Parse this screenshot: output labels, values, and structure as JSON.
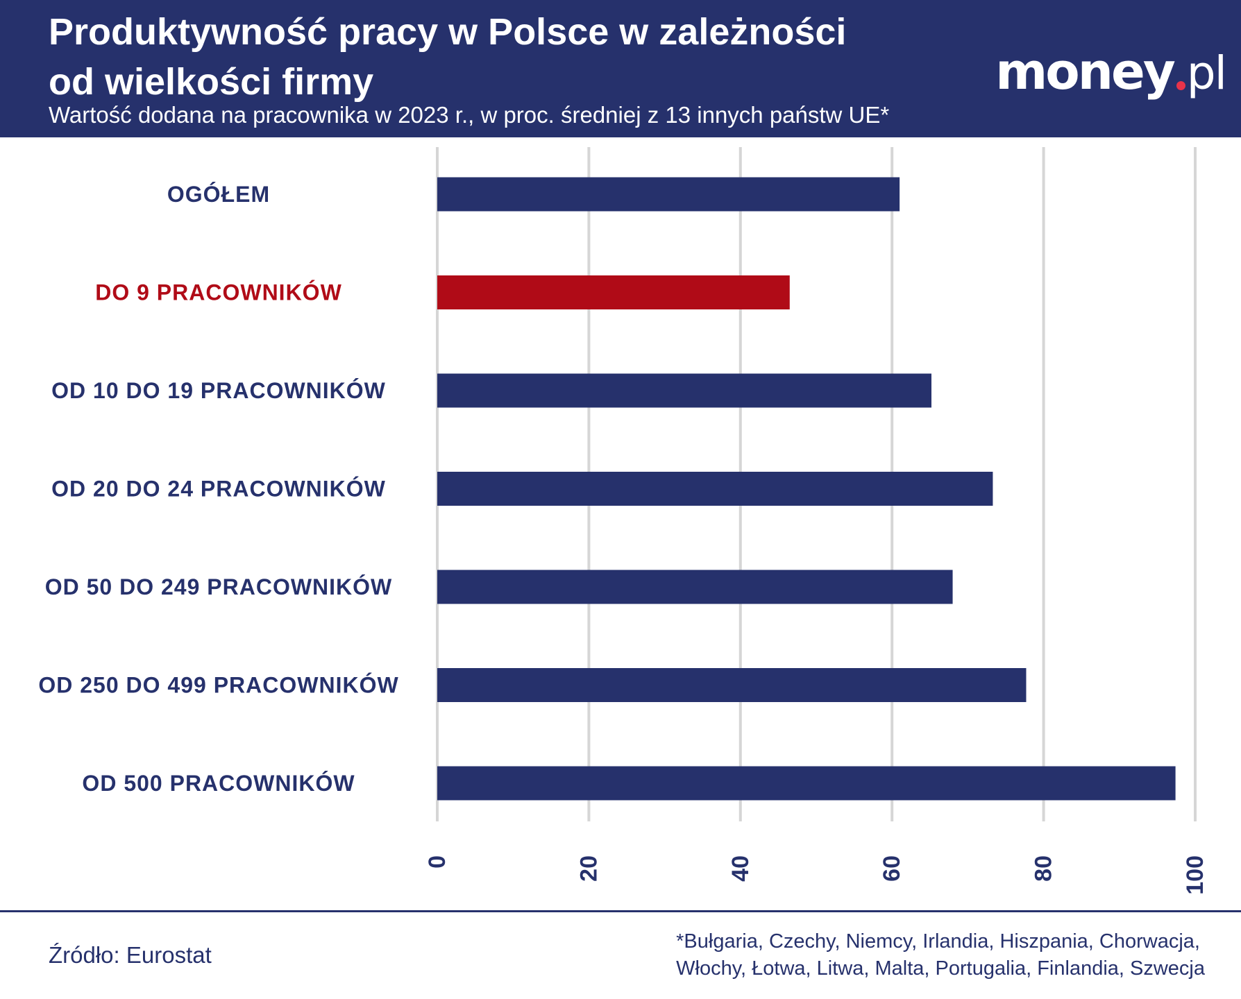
{
  "header": {
    "title": "Produktywność pracy w Polsce w zależności\nod wielkości firmy",
    "subtitle": "Wartość dodana na pracownika w 2023 r., w proc. średniej z 13 innych państw UE*",
    "logo_main": "money",
    "logo_tld": "pl"
  },
  "colors": {
    "background": "#ffffff",
    "header": "#26316c",
    "bar": "#26316c",
    "highlight": "#b00b17",
    "grid": "#d6d6d6",
    "logo_dot": "#e8334a"
  },
  "chart_data": {
    "type": "bar",
    "orientation": "horizontal",
    "categories": [
      "OGÓŁEM",
      "DO 9 PRACOWNIKÓW",
      "OD 10 DO 19 PRACOWNIKÓW",
      "OD 20 DO 24 PRACOWNIKÓW",
      "OD 50 DO 249 PRACOWNIKÓW",
      "OD 250 DO 499 PRACOWNIKÓW",
      "OD 500 PRACOWNIKÓW"
    ],
    "values": [
      61,
      46.5,
      65.2,
      73.3,
      68,
      77.7,
      97.4
    ],
    "highlighted": [
      "DO 9 PRACOWNIKÓW"
    ],
    "xlim": [
      0,
      100
    ],
    "ticks": [
      0,
      20,
      40,
      60,
      80,
      100
    ],
    "tick_labels": [
      "0",
      "20",
      "40",
      "60",
      "80",
      "100"
    ],
    "grid": true,
    "title": "",
    "xlabel": "",
    "ylabel": ""
  },
  "footer": {
    "source": "Źródło: Eurostat",
    "note": "*Bułgaria, Czechy, Niemcy, Irlandia, Hiszpania, Chorwacja,\nWłochy, Łotwa, Litwa, Malta, Portugalia, Finlandia, Szwecja"
  }
}
